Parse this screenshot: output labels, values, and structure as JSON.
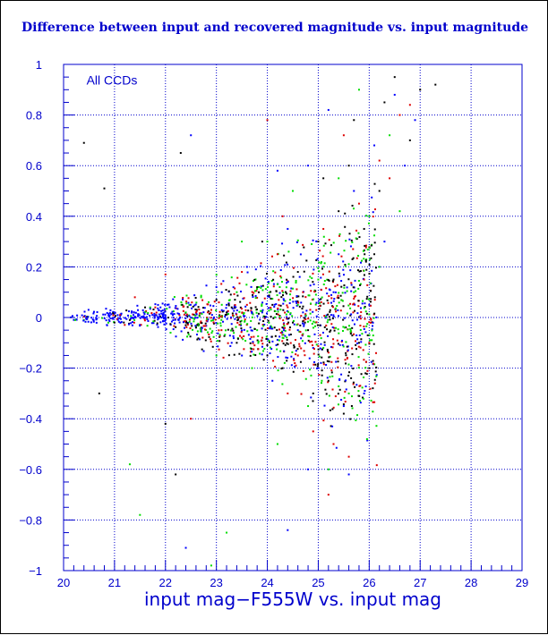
{
  "chart_data": {
    "type": "scatter",
    "title": "Difference between input and recovered magnitude vs. input magnitude",
    "xlabel": "input mag−F555W vs. input mag",
    "ylabel": "",
    "annotation": "All CCDs",
    "xlim": [
      20,
      29
    ],
    "ylim": [
      -1,
      1
    ],
    "xticks": [
      20,
      21,
      22,
      23,
      24,
      25,
      26,
      27,
      28,
      29
    ],
    "yticks": [
      -1,
      -0.8,
      -0.6,
      -0.4,
      -0.2,
      0,
      0.2,
      0.4,
      0.6,
      0.8,
      1
    ],
    "ytick_labels": [
      "−1",
      "−0.8",
      "−0.6",
      "−0.4",
      "−0.2",
      "0",
      "0.2",
      "0.4",
      "0.6",
      "0.8",
      "1"
    ],
    "grid": true,
    "colors": {
      "axis": "#0000cc",
      "grid": "#0000cc",
      "text": "#0000cc"
    },
    "series": [
      {
        "color": "#000000",
        "points": [
          [
            20.4,
            0.69
          ],
          [
            20.8,
            0.51
          ],
          [
            20.7,
            -0.3
          ],
          [
            21.0,
            -0.02
          ],
          [
            21.6,
            0.04
          ],
          [
            22.3,
            0.65
          ],
          [
            22.0,
            -0.42
          ],
          [
            23.0,
            0.07
          ],
          [
            23.4,
            -0.1
          ],
          [
            23.8,
            0.12
          ],
          [
            24.1,
            0.05
          ],
          [
            24.3,
            -0.2
          ],
          [
            24.6,
            0.18
          ],
          [
            24.8,
            -0.05
          ],
          [
            25.0,
            0.3
          ],
          [
            25.2,
            -0.25
          ],
          [
            25.4,
            0.42
          ],
          [
            25.5,
            -0.38
          ],
          [
            25.6,
            0.6
          ],
          [
            25.8,
            -0.1
          ],
          [
            25.9,
            0.35
          ],
          [
            26.0,
            -0.2
          ],
          [
            26.1,
            0.25
          ],
          [
            26.3,
            0.85
          ],
          [
            26.5,
            0.95
          ],
          [
            26.8,
            0.7
          ],
          [
            27.0,
            0.9
          ],
          [
            27.3,
            0.92
          ],
          [
            25.3,
            0.15
          ],
          [
            24.9,
            -0.3
          ],
          [
            24.5,
            -0.02
          ],
          [
            23.9,
            0.3
          ],
          [
            23.2,
            0.02
          ],
          [
            22.6,
            -0.04
          ],
          [
            21.3,
            -0.01
          ],
          [
            22.2,
            -0.62
          ],
          [
            23.3,
            0.04
          ],
          [
            24.0,
            -0.15
          ],
          [
            25.1,
            0.55
          ],
          [
            25.7,
            0.78
          ],
          [
            26.2,
            0.5
          ]
        ]
      },
      {
        "color": "#dd0000",
        "points": [
          [
            21.4,
            0.08
          ],
          [
            22.0,
            0.17
          ],
          [
            22.6,
            0.02
          ],
          [
            23.1,
            -0.05
          ],
          [
            23.5,
            0.18
          ],
          [
            23.9,
            -0.08
          ],
          [
            24.2,
            0.25
          ],
          [
            24.4,
            -0.3
          ],
          [
            24.7,
            0.1
          ],
          [
            24.9,
            -0.45
          ],
          [
            25.1,
            0.35
          ],
          [
            25.3,
            -0.5
          ],
          [
            25.4,
            0.2
          ],
          [
            25.6,
            -0.55
          ],
          [
            25.8,
            0.45
          ],
          [
            26.0,
            -0.1
          ],
          [
            26.2,
            0.62
          ],
          [
            26.4,
            0.55
          ],
          [
            26.6,
            0.8
          ],
          [
            26.8,
            0.84
          ],
          [
            24.0,
            0.78
          ],
          [
            22.5,
            -0.4
          ],
          [
            25.2,
            -0.7
          ],
          [
            25.5,
            0.72
          ],
          [
            23.6,
            0.05
          ],
          [
            24.6,
            -0.15
          ],
          [
            25.9,
            0.15
          ],
          [
            22.9,
            0.03
          ],
          [
            21.8,
            0.04
          ],
          [
            24.3,
            0.4
          ]
        ]
      },
      {
        "color": "#00dd00",
        "points": [
          [
            21.5,
            -0.78
          ],
          [
            21.7,
            0.04
          ],
          [
            22.1,
            -0.06
          ],
          [
            22.7,
            0.08
          ],
          [
            23.0,
            -0.15
          ],
          [
            23.4,
            0.1
          ],
          [
            23.7,
            -0.2
          ],
          [
            24.0,
            0.3
          ],
          [
            24.3,
            -0.08
          ],
          [
            24.5,
            0.5
          ],
          [
            24.8,
            -0.35
          ],
          [
            25.0,
            0.15
          ],
          [
            25.2,
            -0.6
          ],
          [
            25.4,
            0.55
          ],
          [
            25.6,
            -0.3
          ],
          [
            25.8,
            0.9
          ],
          [
            26.0,
            0.4
          ],
          [
            26.2,
            0.2
          ],
          [
            26.4,
            0.72
          ],
          [
            26.6,
            0.42
          ],
          [
            22.9,
            -0.98
          ],
          [
            23.2,
            -0.85
          ],
          [
            21.3,
            -0.58
          ],
          [
            24.6,
            0.05
          ],
          [
            25.7,
            0.1
          ],
          [
            23.8,
            -0.05
          ],
          [
            22.4,
            0.02
          ],
          [
            25.1,
            -0.12
          ],
          [
            24.2,
            -0.5
          ],
          [
            23.5,
            0.3
          ]
        ]
      },
      {
        "color": "#0000ff",
        "points": [
          [
            22.5,
            0.72
          ],
          [
            23.0,
            0.12
          ],
          [
            23.3,
            -0.1
          ],
          [
            23.6,
            0.2
          ],
          [
            23.9,
            0.02
          ],
          [
            24.1,
            -0.25
          ],
          [
            24.4,
            0.35
          ],
          [
            24.6,
            -0.05
          ],
          [
            24.8,
            0.6
          ],
          [
            25.0,
            -0.2
          ],
          [
            25.2,
            0.82
          ],
          [
            25.3,
            0.1
          ],
          [
            25.5,
            -0.35
          ],
          [
            25.7,
            0.5
          ],
          [
            25.9,
            -0.3
          ],
          [
            26.1,
            0.68
          ],
          [
            26.3,
            0.3
          ],
          [
            26.5,
            0.88
          ],
          [
            26.7,
            0.6
          ],
          [
            26.9,
            0.78
          ],
          [
            22.4,
            -0.91
          ],
          [
            24.4,
            -0.84
          ],
          [
            24.2,
            0.58
          ],
          [
            24.8,
            -0.6
          ],
          [
            25.6,
            -0.62
          ],
          [
            23.2,
            0.05
          ],
          [
            22.0,
            -0.01
          ],
          [
            24.7,
            0.02
          ],
          [
            25.4,
            0.25
          ],
          [
            26.0,
            0.05
          ]
        ]
      }
    ]
  }
}
